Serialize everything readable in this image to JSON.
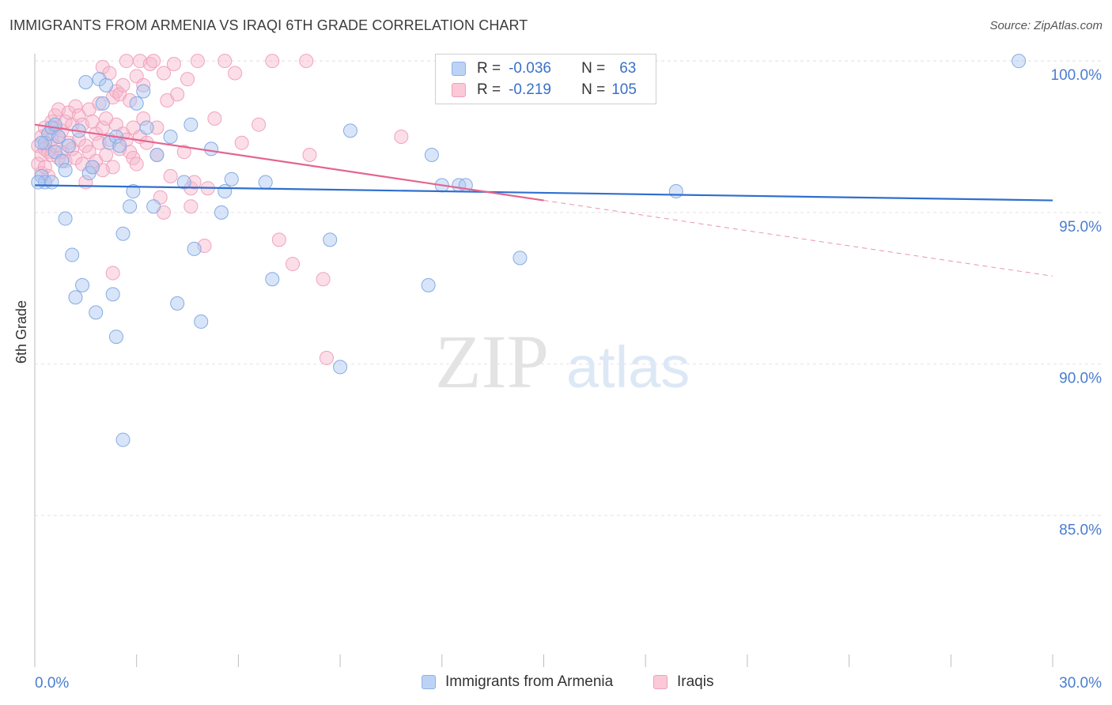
{
  "title": "IMMIGRANTS FROM ARMENIA VS IRAQI 6TH GRADE CORRELATION CHART",
  "source": "Source: ZipAtlas.com",
  "watermark": {
    "zip": "ZIP",
    "atlas": "atlas"
  },
  "legend": {
    "rows": [
      {
        "r_label": "R =",
        "r_value": "-0.036",
        "n_label": "N =",
        "n_value": "63",
        "color": "#a9c6f2"
      },
      {
        "r_label": "R =",
        "r_value": "-0.219",
        "n_label": "N =",
        "n_value": "105",
        "color": "#f7b6cb"
      }
    ]
  },
  "bottom_legend": [
    {
      "label": "Immigrants from Armenia",
      "color": "#a9c6f2"
    },
    {
      "label": "Iraqis",
      "color": "#f7b6cb"
    }
  ],
  "colors": {
    "blue_point": "#a9c6f2",
    "blue_line": "#2f6fce",
    "pink_point": "#f7b6cb",
    "pink_line": "#e4658e",
    "axis_text": "#4a7dd0"
  },
  "chart_data": {
    "type": "scatter",
    "title": "IMMIGRANTS FROM ARMENIA VS IRAQI 6TH GRADE CORRELATION CHART",
    "xlabel": "",
    "ylabel": "6th Grade",
    "xlim": [
      0,
      30
    ],
    "ylim": [
      80.0,
      100.5
    ],
    "x_tick_labels": [
      "0.0%",
      "30.0%"
    ],
    "y_ticks": [
      85,
      90,
      95,
      100
    ],
    "y_tick_labels": [
      "85.0%",
      "90.0%",
      "95.0%",
      "100.0%"
    ],
    "legend": [
      "Immigrants from Armenia",
      "Iraqis"
    ],
    "series": [
      {
        "name": "Immigrants from Armenia",
        "R": -0.036,
        "N": 63,
        "trend": {
          "x0": 0.0,
          "y0": 95.9,
          "x1": 30.0,
          "y1": 95.4
        },
        "points": [
          [
            0.2,
            96.2
          ],
          [
            0.3,
            96.0
          ],
          [
            0.3,
            97.3
          ],
          [
            0.4,
            97.6
          ],
          [
            0.5,
            96.0
          ],
          [
            0.5,
            97.8
          ],
          [
            0.6,
            97.0
          ],
          [
            0.6,
            97.9
          ],
          [
            0.7,
            97.5
          ],
          [
            0.8,
            96.7
          ],
          [
            0.9,
            96.4
          ],
          [
            0.9,
            94.8
          ],
          [
            1.0,
            97.2
          ],
          [
            1.1,
            93.6
          ],
          [
            1.2,
            92.2
          ],
          [
            1.3,
            97.7
          ],
          [
            1.4,
            92.6
          ],
          [
            1.5,
            99.3
          ],
          [
            1.6,
            96.3
          ],
          [
            1.7,
            96.5
          ],
          [
            1.8,
            91.7
          ],
          [
            1.9,
            99.4
          ],
          [
            2.0,
            98.6
          ],
          [
            2.1,
            99.2
          ],
          [
            2.2,
            97.3
          ],
          [
            2.3,
            92.3
          ],
          [
            2.4,
            97.5
          ],
          [
            2.4,
            90.9
          ],
          [
            2.5,
            97.2
          ],
          [
            2.6,
            94.3
          ],
          [
            2.8,
            95.2
          ],
          [
            2.9,
            95.7
          ],
          [
            2.6,
            87.5
          ],
          [
            3.0,
            98.6
          ],
          [
            3.2,
            99.0
          ],
          [
            3.3,
            97.8
          ],
          [
            3.5,
            95.2
          ],
          [
            3.6,
            96.9
          ],
          [
            4.0,
            97.5
          ],
          [
            4.2,
            92.0
          ],
          [
            4.4,
            96.0
          ],
          [
            4.6,
            97.9
          ],
          [
            4.7,
            93.8
          ],
          [
            4.9,
            91.4
          ],
          [
            5.2,
            97.1
          ],
          [
            5.5,
            95.0
          ],
          [
            5.6,
            95.7
          ],
          [
            5.8,
            96.1
          ],
          [
            6.8,
            96.0
          ],
          [
            7.0,
            92.8
          ],
          [
            8.7,
            94.1
          ],
          [
            9.0,
            89.9
          ],
          [
            9.3,
            97.7
          ],
          [
            11.6,
            92.6
          ],
          [
            11.7,
            96.9
          ],
          [
            12.0,
            95.9
          ],
          [
            12.5,
            95.9
          ],
          [
            12.7,
            95.9
          ],
          [
            14.3,
            93.5
          ],
          [
            18.9,
            95.7
          ],
          [
            29.0,
            100.0
          ],
          [
            0.1,
            96.0
          ],
          [
            0.2,
            97.3
          ]
        ]
      },
      {
        "name": "Iraqis",
        "R": -0.219,
        "N": 105,
        "trend": {
          "x0": 0.0,
          "y0": 97.9,
          "x1": 15.0,
          "y1": 95.4,
          "dash_x1": 30.0,
          "dash_y1": 92.9
        },
        "points": [
          [
            0.1,
            96.6
          ],
          [
            0.1,
            97.2
          ],
          [
            0.2,
            96.3
          ],
          [
            0.2,
            96.9
          ],
          [
            0.2,
            97.5
          ],
          [
            0.3,
            96.5
          ],
          [
            0.3,
            97.1
          ],
          [
            0.3,
            97.8
          ],
          [
            0.4,
            96.2
          ],
          [
            0.4,
            97.0
          ],
          [
            0.4,
            97.6
          ],
          [
            0.5,
            96.9
          ],
          [
            0.5,
            97.4
          ],
          [
            0.5,
            98.0
          ],
          [
            0.6,
            97.2
          ],
          [
            0.6,
            97.8
          ],
          [
            0.6,
            98.2
          ],
          [
            0.7,
            96.8
          ],
          [
            0.7,
            97.5
          ],
          [
            0.7,
            98.4
          ],
          [
            0.8,
            97.0
          ],
          [
            0.8,
            97.7
          ],
          [
            0.9,
            96.7
          ],
          [
            0.9,
            98.0
          ],
          [
            1.0,
            97.3
          ],
          [
            1.0,
            98.3
          ],
          [
            1.1,
            97.1
          ],
          [
            1.1,
            97.9
          ],
          [
            1.2,
            96.8
          ],
          [
            1.2,
            98.5
          ],
          [
            1.3,
            97.4
          ],
          [
            1.3,
            98.2
          ],
          [
            1.4,
            96.6
          ],
          [
            1.4,
            97.9
          ],
          [
            1.5,
            97.2
          ],
          [
            1.5,
            96.0
          ],
          [
            1.6,
            98.4
          ],
          [
            1.6,
            97.0
          ],
          [
            1.7,
            96.5
          ],
          [
            1.7,
            98.0
          ],
          [
            1.8,
            97.6
          ],
          [
            1.8,
            96.7
          ],
          [
            1.9,
            98.6
          ],
          [
            1.9,
            97.3
          ],
          [
            2.0,
            99.8
          ],
          [
            2.0,
            97.8
          ],
          [
            2.1,
            96.9
          ],
          [
            2.1,
            98.1
          ],
          [
            2.2,
            99.6
          ],
          [
            2.2,
            97.4
          ],
          [
            2.3,
            98.8
          ],
          [
            2.3,
            96.5
          ],
          [
            2.4,
            97.9
          ],
          [
            2.4,
            99.0
          ],
          [
            2.5,
            97.1
          ],
          [
            2.5,
            98.9
          ],
          [
            2.6,
            99.2
          ],
          [
            2.6,
            97.6
          ],
          [
            2.7,
            97.4
          ],
          [
            2.7,
            100.0
          ],
          [
            2.8,
            97.0
          ],
          [
            2.8,
            98.7
          ],
          [
            2.9,
            96.8
          ],
          [
            2.9,
            97.8
          ],
          [
            3.0,
            99.5
          ],
          [
            3.0,
            96.6
          ],
          [
            3.1,
            97.5
          ],
          [
            3.1,
            100.0
          ],
          [
            3.2,
            99.2
          ],
          [
            3.2,
            98.1
          ],
          [
            3.3,
            97.3
          ],
          [
            3.4,
            99.9
          ],
          [
            3.5,
            100.0
          ],
          [
            3.6,
            97.8
          ],
          [
            3.6,
            96.9
          ],
          [
            3.8,
            99.6
          ],
          [
            3.8,
            95.0
          ],
          [
            3.9,
            98.7
          ],
          [
            4.0,
            96.2
          ],
          [
            4.1,
            99.9
          ],
          [
            4.2,
            98.9
          ],
          [
            4.4,
            97.0
          ],
          [
            4.5,
            99.4
          ],
          [
            4.6,
            95.8
          ],
          [
            4.7,
            96.0
          ],
          [
            4.8,
            100.0
          ],
          [
            5.0,
            93.9
          ],
          [
            5.1,
            95.8
          ],
          [
            5.3,
            98.1
          ],
          [
            5.6,
            100.0
          ],
          [
            5.9,
            99.6
          ],
          [
            6.1,
            97.3
          ],
          [
            6.6,
            97.9
          ],
          [
            7.0,
            100.0
          ],
          [
            7.2,
            94.1
          ],
          [
            7.6,
            93.3
          ],
          [
            8.0,
            100.0
          ],
          [
            8.1,
            96.9
          ],
          [
            8.5,
            92.8
          ],
          [
            8.6,
            90.2
          ],
          [
            10.8,
            97.5
          ],
          [
            2.3,
            93.0
          ],
          [
            3.7,
            95.5
          ],
          [
            4.6,
            95.2
          ],
          [
            2.0,
            96.4
          ]
        ]
      }
    ]
  }
}
